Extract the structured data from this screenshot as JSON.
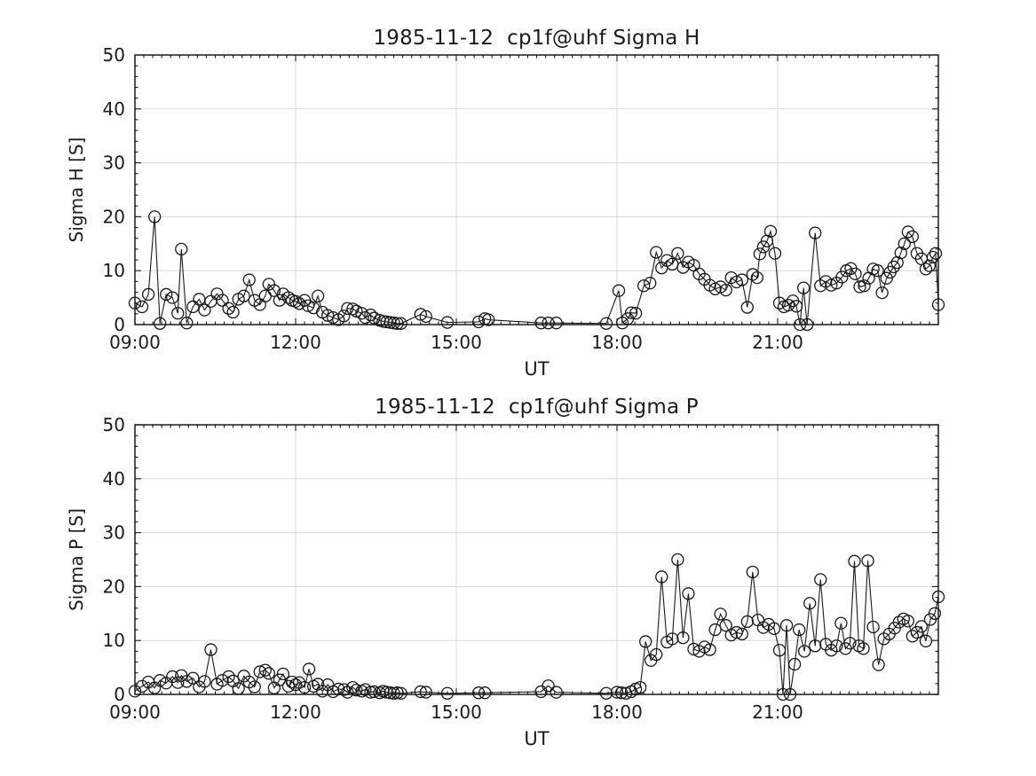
{
  "figure": {
    "background": "#ffffff",
    "style": {
      "line_color": "#1a1a1a",
      "marker": "open-circle",
      "marker_radius": 6.5,
      "grid_color": "#d9d9d9",
      "axis_color": "#1a1a1a",
      "text_color": "#1c1c1c"
    }
  },
  "chart_data": [
    {
      "type": "line",
      "title": "1985-11-12  cp1f@uhf Sigma H",
      "xlabel": "UT",
      "ylabel": "Sigma H [S]",
      "xlim_minutes": [
        540,
        1440
      ],
      "ylim": [
        0,
        50
      ],
      "grid": true,
      "x_minor_step_minutes": 10,
      "y_minor_step": 2,
      "xticks": [
        {
          "minute": 540,
          "label": "09:00"
        },
        {
          "minute": 720,
          "label": "12:00"
        },
        {
          "minute": 900,
          "label": "15:00"
        },
        {
          "minute": 1080,
          "label": "18:00"
        },
        {
          "minute": 1260,
          "label": "21:00"
        },
        {
          "minute": 1440,
          "label": ""
        }
      ],
      "yticks": [
        0,
        10,
        20,
        30,
        40,
        50
      ],
      "points": [
        [
          540,
          4.0
        ],
        [
          548,
          3.3
        ],
        [
          555,
          5.6
        ],
        [
          562,
          20.0
        ],
        [
          568,
          0.2
        ],
        [
          575,
          5.6
        ],
        [
          582,
          5.0
        ],
        [
          588,
          2.1
        ],
        [
          592,
          14.0
        ],
        [
          598,
          0.3
        ],
        [
          605,
          3.3
        ],
        [
          612,
          4.7
        ],
        [
          618,
          2.7
        ],
        [
          625,
          4.3
        ],
        [
          632,
          5.7
        ],
        [
          638,
          4.5
        ],
        [
          645,
          3.0
        ],
        [
          650,
          2.3
        ],
        [
          656,
          4.7
        ],
        [
          662,
          5.3
        ],
        [
          668,
          8.3
        ],
        [
          674,
          4.5
        ],
        [
          680,
          3.7
        ],
        [
          686,
          5.3
        ],
        [
          690,
          7.5
        ],
        [
          696,
          6.3
        ],
        [
          702,
          4.5
        ],
        [
          706,
          5.7
        ],
        [
          712,
          5.0
        ],
        [
          716,
          4.5
        ],
        [
          720,
          4.3
        ],
        [
          724,
          3.9
        ],
        [
          730,
          4.5
        ],
        [
          734,
          3.5
        ],
        [
          740,
          3.1
        ],
        [
          745,
          5.3
        ],
        [
          750,
          2.3
        ],
        [
          756,
          1.7
        ],
        [
          762,
          1.3
        ],
        [
          768,
          0.9
        ],
        [
          774,
          1.6
        ],
        [
          778,
          3.0
        ],
        [
          784,
          2.9
        ],
        [
          788,
          2.5
        ],
        [
          794,
          2.1
        ],
        [
          798,
          1.3
        ],
        [
          804,
          1.8
        ],
        [
          808,
          1.2
        ],
        [
          814,
          0.8
        ],
        [
          818,
          0.6
        ],
        [
          822,
          0.5
        ],
        [
          826,
          0.4
        ],
        [
          830,
          0.3
        ],
        [
          834,
          0.2
        ],
        [
          838,
          0.2
        ],
        [
          860,
          1.9
        ],
        [
          866,
          1.5
        ],
        [
          890,
          0.4
        ],
        [
          925,
          0.5
        ],
        [
          932,
          1.1
        ],
        [
          936,
          0.9
        ],
        [
          995,
          0.3
        ],
        [
          1003,
          0.3
        ],
        [
          1012,
          0.3
        ],
        [
          1068,
          0.2
        ],
        [
          1082,
          6.3
        ],
        [
          1086,
          0.3
        ],
        [
          1092,
          1.1
        ],
        [
          1096,
          2.2
        ],
        [
          1101,
          2.1
        ],
        [
          1110,
          7.2
        ],
        [
          1117,
          7.7
        ],
        [
          1124,
          13.4
        ],
        [
          1130,
          10.5
        ],
        [
          1136,
          11.9
        ],
        [
          1142,
          11.2
        ],
        [
          1148,
          13.2
        ],
        [
          1154,
          10.6
        ],
        [
          1160,
          11.6
        ],
        [
          1166,
          11.0
        ],
        [
          1172,
          9.4
        ],
        [
          1178,
          8.4
        ],
        [
          1184,
          7.3
        ],
        [
          1190,
          6.6
        ],
        [
          1196,
          7.0
        ],
        [
          1202,
          6.4
        ],
        [
          1208,
          8.7
        ],
        [
          1214,
          7.9
        ],
        [
          1220,
          8.3
        ],
        [
          1226,
          3.2
        ],
        [
          1232,
          9.3
        ],
        [
          1237,
          8.7
        ],
        [
          1240,
          13.1
        ],
        [
          1244,
          14.4
        ],
        [
          1248,
          15.5
        ],
        [
          1252,
          17.3
        ],
        [
          1257,
          13.2
        ],
        [
          1262,
          4.0
        ],
        [
          1267,
          3.3
        ],
        [
          1272,
          3.6
        ],
        [
          1277,
          4.4
        ],
        [
          1281,
          3.4
        ],
        [
          1285,
          0.0
        ],
        [
          1289,
          6.8
        ],
        [
          1293,
          0.0
        ],
        [
          1302,
          17.0
        ],
        [
          1308,
          7.2
        ],
        [
          1314,
          8.0
        ],
        [
          1320,
          7.3
        ],
        [
          1326,
          7.7
        ],
        [
          1332,
          8.8
        ],
        [
          1337,
          10.0
        ],
        [
          1342,
          10.4
        ],
        [
          1347,
          9.4
        ],
        [
          1352,
          7.0
        ],
        [
          1357,
          7.2
        ],
        [
          1362,
          8.6
        ],
        [
          1367,
          10.3
        ],
        [
          1372,
          10.0
        ],
        [
          1377,
          5.9
        ],
        [
          1382,
          8.6
        ],
        [
          1386,
          9.7
        ],
        [
          1390,
          10.7
        ],
        [
          1394,
          11.5
        ],
        [
          1398,
          13.3
        ],
        [
          1402,
          15.0
        ],
        [
          1406,
          17.2
        ],
        [
          1411,
          16.3
        ],
        [
          1416,
          13.2
        ],
        [
          1421,
          12.2
        ],
        [
          1426,
          10.3
        ],
        [
          1430,
          10.9
        ],
        [
          1434,
          12.5
        ],
        [
          1437,
          13.2
        ],
        [
          1440,
          3.7
        ]
      ]
    },
    {
      "type": "line",
      "title": "1985-11-12  cp1f@uhf Sigma P",
      "xlabel": "UT",
      "ylabel": "Sigma P [S]",
      "xlim_minutes": [
        540,
        1440
      ],
      "ylim": [
        0,
        50
      ],
      "grid": true,
      "x_minor_step_minutes": 10,
      "y_minor_step": 2,
      "xticks": [
        {
          "minute": 540,
          "label": "09:00"
        },
        {
          "minute": 720,
          "label": "12:00"
        },
        {
          "minute": 900,
          "label": "15:00"
        },
        {
          "minute": 1080,
          "label": "18:00"
        },
        {
          "minute": 1260,
          "label": "21:00"
        },
        {
          "minute": 1440,
          "label": ""
        }
      ],
      "yticks": [
        0,
        10,
        20,
        30,
        40,
        50
      ],
      "points": [
        [
          540,
          0.6
        ],
        [
          548,
          1.5
        ],
        [
          555,
          2.3
        ],
        [
          562,
          1.2
        ],
        [
          568,
          2.6
        ],
        [
          575,
          2.1
        ],
        [
          582,
          3.3
        ],
        [
          588,
          2.2
        ],
        [
          592,
          3.5
        ],
        [
          598,
          2.4
        ],
        [
          605,
          3.0
        ],
        [
          612,
          1.4
        ],
        [
          618,
          2.4
        ],
        [
          625,
          8.3
        ],
        [
          632,
          1.9
        ],
        [
          638,
          2.6
        ],
        [
          645,
          3.3
        ],
        [
          650,
          2.5
        ],
        [
          656,
          1.1
        ],
        [
          662,
          3.4
        ],
        [
          668,
          2.3
        ],
        [
          674,
          1.4
        ],
        [
          680,
          4.2
        ],
        [
          686,
          4.5
        ],
        [
          690,
          3.9
        ],
        [
          696,
          1.2
        ],
        [
          702,
          2.7
        ],
        [
          706,
          3.8
        ],
        [
          712,
          1.5
        ],
        [
          716,
          2.3
        ],
        [
          720,
          1.8
        ],
        [
          724,
          2.2
        ],
        [
          730,
          1.3
        ],
        [
          735,
          4.7
        ],
        [
          740,
          1.5
        ],
        [
          745,
          1.9
        ],
        [
          750,
          0.6
        ],
        [
          756,
          1.8
        ],
        [
          762,
          0.5
        ],
        [
          768,
          1.0
        ],
        [
          774,
          0.9
        ],
        [
          778,
          0.4
        ],
        [
          784,
          1.3
        ],
        [
          788,
          0.8
        ],
        [
          794,
          0.6
        ],
        [
          798,
          0.9
        ],
        [
          804,
          0.4
        ],
        [
          808,
          0.5
        ],
        [
          814,
          0.3
        ],
        [
          818,
          0.6
        ],
        [
          822,
          0.4
        ],
        [
          826,
          0.3
        ],
        [
          830,
          0.2
        ],
        [
          834,
          0.3
        ],
        [
          838,
          0.2
        ],
        [
          860,
          0.5
        ],
        [
          866,
          0.4
        ],
        [
          890,
          0.2
        ],
        [
          925,
          0.3
        ],
        [
          932,
          0.3
        ],
        [
          995,
          0.5
        ],
        [
          1003,
          1.6
        ],
        [
          1012,
          0.4
        ],
        [
          1068,
          0.2
        ],
        [
          1080,
          0.4
        ],
        [
          1085,
          0.3
        ],
        [
          1090,
          0.2
        ],
        [
          1096,
          0.5
        ],
        [
          1101,
          1.0
        ],
        [
          1106,
          1.3
        ],
        [
          1112,
          9.8
        ],
        [
          1118,
          6.3
        ],
        [
          1124,
          7.4
        ],
        [
          1130,
          21.8
        ],
        [
          1136,
          9.7
        ],
        [
          1142,
          10.3
        ],
        [
          1148,
          25.0
        ],
        [
          1154,
          10.5
        ],
        [
          1160,
          18.7
        ],
        [
          1166,
          8.4
        ],
        [
          1172,
          8.0
        ],
        [
          1178,
          8.8
        ],
        [
          1184,
          8.3
        ],
        [
          1190,
          12.0
        ],
        [
          1196,
          14.9
        ],
        [
          1202,
          12.8
        ],
        [
          1208,
          11.0
        ],
        [
          1214,
          11.5
        ],
        [
          1220,
          11.2
        ],
        [
          1226,
          13.5
        ],
        [
          1232,
          22.7
        ],
        [
          1238,
          13.8
        ],
        [
          1244,
          12.4
        ],
        [
          1250,
          13.0
        ],
        [
          1256,
          12.2
        ],
        [
          1262,
          8.2
        ],
        [
          1266,
          0.0
        ],
        [
          1270,
          12.8
        ],
        [
          1274,
          0.0
        ],
        [
          1279,
          5.6
        ],
        [
          1284,
          12.0
        ],
        [
          1290,
          8.0
        ],
        [
          1296,
          16.9
        ],
        [
          1302,
          9.0
        ],
        [
          1308,
          21.3
        ],
        [
          1314,
          9.3
        ],
        [
          1320,
          8.2
        ],
        [
          1326,
          9.0
        ],
        [
          1331,
          13.2
        ],
        [
          1336,
          8.5
        ],
        [
          1341,
          9.5
        ],
        [
          1346,
          24.7
        ],
        [
          1351,
          9.0
        ],
        [
          1356,
          8.5
        ],
        [
          1361,
          24.8
        ],
        [
          1367,
          12.5
        ],
        [
          1373,
          5.5
        ],
        [
          1379,
          10.3
        ],
        [
          1385,
          11.2
        ],
        [
          1391,
          12.3
        ],
        [
          1396,
          13.4
        ],
        [
          1401,
          14.0
        ],
        [
          1406,
          13.6
        ],
        [
          1411,
          10.8
        ],
        [
          1416,
          11.5
        ],
        [
          1421,
          12.6
        ],
        [
          1426,
          9.9
        ],
        [
          1431,
          13.9
        ],
        [
          1436,
          15.0
        ],
        [
          1440,
          18.1
        ]
      ]
    }
  ]
}
